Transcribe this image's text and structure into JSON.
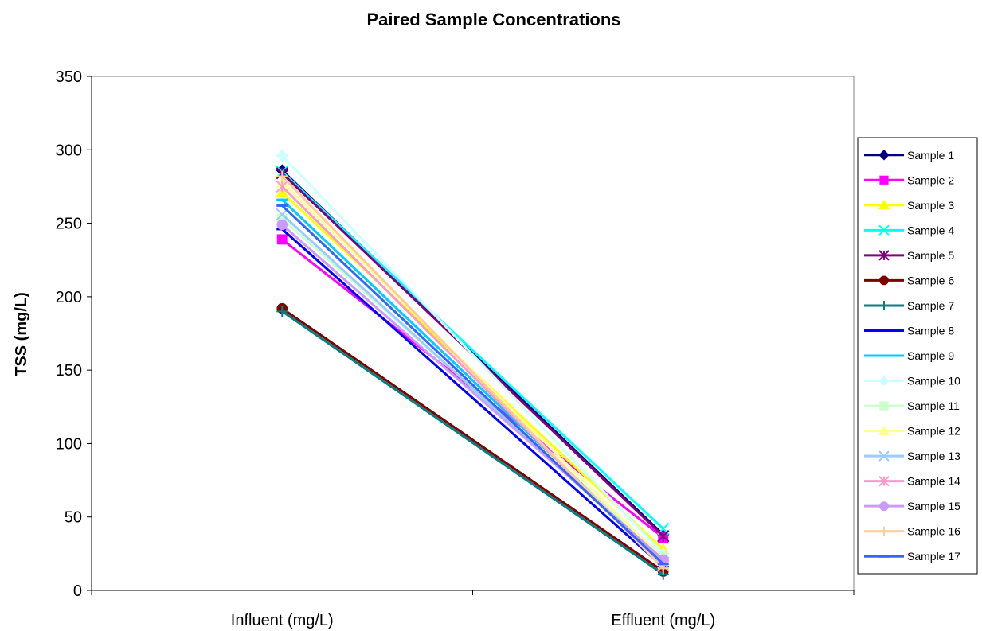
{
  "chart_data": {
    "type": "line",
    "title": "Paired Sample Concentrations",
    "xlabel": "",
    "ylabel": "TSS (mg/L)",
    "categories": [
      "Influent (mg/L)",
      "Effluent (mg/L)"
    ],
    "ylim": [
      0,
      350
    ],
    "yticks": [
      0,
      50,
      100,
      150,
      200,
      250,
      300,
      350
    ],
    "grid": false,
    "legend": "right",
    "series": [
      {
        "name": "Sample 1",
        "values": [
          286,
          38
        ],
        "color": "#000080",
        "marker": "diamond"
      },
      {
        "name": "Sample 2",
        "values": [
          239,
          36
        ],
        "color": "#ff00ff",
        "marker": "square"
      },
      {
        "name": "Sample 3",
        "values": [
          271,
          28
        ],
        "color": "#ffff00",
        "marker": "triangle"
      },
      {
        "name": "Sample 4",
        "values": [
          285,
          42
        ],
        "color": "#00ffff",
        "marker": "x"
      },
      {
        "name": "Sample 5",
        "values": [
          284,
          37
        ],
        "color": "#800080",
        "marker": "star"
      },
      {
        "name": "Sample 6",
        "values": [
          192,
          13
        ],
        "color": "#800000",
        "marker": "circle"
      },
      {
        "name": "Sample 7",
        "values": [
          190,
          11
        ],
        "color": "#008080",
        "marker": "plus"
      },
      {
        "name": "Sample 8",
        "values": [
          246,
          16
        ],
        "color": "#0000ff",
        "marker": "dash"
      },
      {
        "name": "Sample 9",
        "values": [
          266,
          20
        ],
        "color": "#00ccff",
        "marker": "dash"
      },
      {
        "name": "Sample 10",
        "values": [
          296,
          25
        ],
        "color": "#ccffff",
        "marker": "diamond"
      },
      {
        "name": "Sample 11",
        "values": [
          253,
          23
        ],
        "color": "#ccffcc",
        "marker": "square"
      },
      {
        "name": "Sample 12",
        "values": [
          278,
          21
        ],
        "color": "#ffff99",
        "marker": "triangle"
      },
      {
        "name": "Sample 13",
        "values": [
          256,
          19
        ],
        "color": "#99ccff",
        "marker": "x"
      },
      {
        "name": "Sample 14",
        "values": [
          275,
          17
        ],
        "color": "#ff99cc",
        "marker": "star"
      },
      {
        "name": "Sample 15",
        "values": [
          249,
          21
        ],
        "color": "#cc99ff",
        "marker": "circle"
      },
      {
        "name": "Sample 16",
        "values": [
          282,
          15
        ],
        "color": "#ffcc99",
        "marker": "plus"
      },
      {
        "name": "Sample 17",
        "values": [
          262,
          18
        ],
        "color": "#3366ff",
        "marker": "dash"
      }
    ]
  }
}
